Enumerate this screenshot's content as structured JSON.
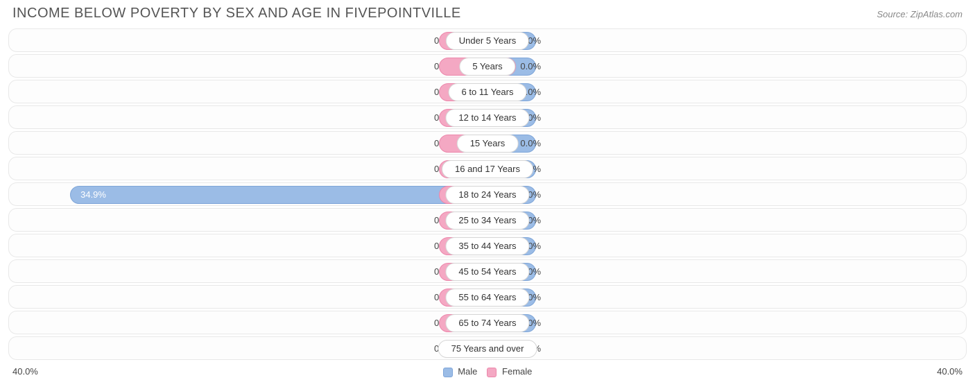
{
  "header": {
    "title": "INCOME BELOW POVERTY BY SEX AND AGE IN FIVEPOINTVILLE",
    "source": "Source: ZipAtlas.com"
  },
  "chart": {
    "type": "diverging-bar",
    "axis_max": 40.0,
    "min_bar_percent": 6.0,
    "background_color": "#ffffff",
    "row_bg": "#fdfdfd",
    "row_border": "#e8e8e8",
    "pill_bg": "#ffffff",
    "pill_border": "#d6d6d6",
    "male_color": "#9bbce6",
    "male_border": "#7ea5d8",
    "female_color": "#f4a8c3",
    "female_border": "#ec87ab",
    "label_fontsize": 13,
    "title_fontsize": 20,
    "axis_labels": {
      "left": "40.0%",
      "right": "40.0%"
    },
    "legend": {
      "male": "Male",
      "female": "Female"
    },
    "categories": [
      {
        "label": "Under 5 Years",
        "male": 0.0,
        "female": 0.0
      },
      {
        "label": "5 Years",
        "male": 0.0,
        "female": 0.0
      },
      {
        "label": "6 to 11 Years",
        "male": 0.0,
        "female": 0.0
      },
      {
        "label": "12 to 14 Years",
        "male": 0.0,
        "female": 0.0
      },
      {
        "label": "15 Years",
        "male": 0.0,
        "female": 0.0
      },
      {
        "label": "16 and 17 Years",
        "male": 0.0,
        "female": 0.0
      },
      {
        "label": "18 to 24 Years",
        "male": 34.9,
        "female": 0.0
      },
      {
        "label": "25 to 34 Years",
        "male": 0.0,
        "female": 0.0
      },
      {
        "label": "35 to 44 Years",
        "male": 0.0,
        "female": 0.0
      },
      {
        "label": "45 to 54 Years",
        "male": 0.0,
        "female": 0.0
      },
      {
        "label": "55 to 64 Years",
        "male": 0.0,
        "female": 0.0
      },
      {
        "label": "65 to 74 Years",
        "male": 0.0,
        "female": 0.0
      },
      {
        "label": "75 Years and over",
        "male": 0.0,
        "female": 0.0
      }
    ]
  }
}
